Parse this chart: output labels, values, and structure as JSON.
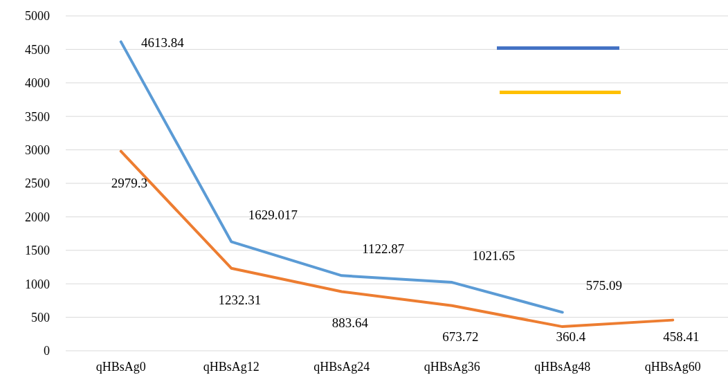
{
  "chart_data": {
    "type": "line",
    "categories": [
      "qHBsAg0",
      "qHBsAg12",
      "qHBsAg24",
      "qHBsAg36",
      "qHBsAg48",
      "qHBsAg60"
    ],
    "series": [
      {
        "color": "#5b9bd5",
        "values": [
          4613.84,
          1629.017,
          1122.87,
          1021.65,
          575.09,
          null
        ]
      },
      {
        "color": "#ed7d31",
        "values": [
          2979.3,
          1232.31,
          883.64,
          673.72,
          360.4,
          458.41
        ]
      }
    ],
    "ylim": [
      0,
      5000
    ],
    "yticks": [
      0,
      500,
      1000,
      1500,
      2000,
      2500,
      3000,
      3500,
      4000,
      4500,
      5000
    ],
    "grid": "y",
    "data_labels": true,
    "marker": "none",
    "line_style": "solid"
  }
}
